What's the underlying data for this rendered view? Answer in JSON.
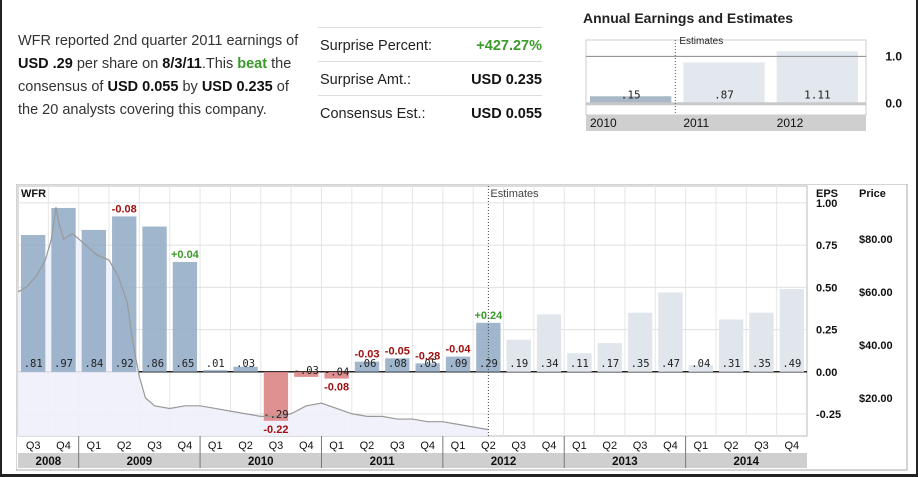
{
  "summary": {
    "p1": "WFR reported 2nd quarter 2011 earnings of",
    "eps": "USD .29",
    "p2": "per share on",
    "date": "8/3/11",
    "p3": ".This",
    "verdict": "beat",
    "p4": "the consensus of",
    "consensus": "USD 0.055",
    "p5": "by",
    "diff": "USD 0.235",
    "p6": "of the 20 analysts covering this company."
  },
  "stats": [
    {
      "label": "Surprise Percent:",
      "value": "+427.27%",
      "positive": true
    },
    {
      "label": "Surprise Amt.:",
      "value": "USD 0.235",
      "positive": false
    },
    {
      "label": "Consensus Est.:",
      "value": "USD 0.055",
      "positive": false
    }
  ],
  "chart_data": [
    {
      "type": "bar",
      "title": "Annual Earnings and Estimates",
      "categories": [
        "2010",
        "2011",
        "2012"
      ],
      "values": [
        0.15,
        0.87,
        1.11
      ],
      "value_labels": [
        ".15",
        ".87",
        "1.11"
      ],
      "estimate_start": "2011",
      "estimates_label": "Estimates",
      "ytick_labels": [
        "1.0",
        "0.0"
      ],
      "yticks": [
        1.0,
        0.0
      ],
      "ylim": [
        -0.25,
        1.35
      ],
      "colors": {
        "actual": "#a8b8c8",
        "estimate": "#e2e8ee",
        "axis_band": "#c8c8c8"
      }
    },
    {
      "type": "bar",
      "ticker": "WFR",
      "estimates_label": "Estimates",
      "eps_axis_label": "EPS",
      "price_axis_label": "Price",
      "quarters": [
        "Q3",
        "Q4",
        "Q1",
        "Q2",
        "Q3",
        "Q4",
        "Q1",
        "Q2",
        "Q3",
        "Q4",
        "Q1",
        "Q2",
        "Q3",
        "Q4",
        "Q1",
        "Q2",
        "Q3",
        "Q4",
        "Q1",
        "Q2",
        "Q3",
        "Q4",
        "Q1",
        "Q2",
        "Q3",
        "Q4"
      ],
      "years": [
        {
          "label": "2008",
          "start": 0,
          "count": 2
        },
        {
          "label": "2009",
          "start": 2,
          "count": 4
        },
        {
          "label": "2010",
          "start": 6,
          "count": 4
        },
        {
          "label": "2011",
          "start": 10,
          "count": 4
        },
        {
          "label": "2012",
          "start": 14,
          "count": 4
        },
        {
          "label": "2013",
          "start": 18,
          "count": 4
        },
        {
          "label": "2014",
          "start": 22,
          "count": 4
        }
      ],
      "eps": [
        0.81,
        0.97,
        0.84,
        0.92,
        0.86,
        0.65,
        0.01,
        0.03,
        -0.29,
        -0.03,
        -0.04,
        0.06,
        0.08,
        0.05,
        0.09,
        0.29,
        0.19,
        0.34,
        0.11,
        0.17,
        0.35,
        0.47,
        0.04,
        0.31,
        0.35,
        0.49
      ],
      "eps_labels": [
        ".81",
        ".97",
        ".84",
        ".92",
        ".86",
        ".65",
        ".01",
        ".03",
        "-.29",
        "-.03",
        "-.04",
        ".06",
        ".08",
        ".05",
        ".09",
        ".29",
        ".19",
        ".34",
        ".11",
        ".17",
        ".35",
        ".47",
        ".04",
        ".31",
        ".35",
        ".49"
      ],
      "estimate_start_index": 16,
      "surprises": [
        {
          "index": 3,
          "value": -0.08,
          "label": "-0.08"
        },
        {
          "index": 5,
          "value": 0.04,
          "label": "+0.04"
        },
        {
          "index": 8,
          "value": -0.22,
          "label": "-0.22"
        },
        {
          "index": 10,
          "value": -0.08,
          "label": "-0.08"
        },
        {
          "index": 11,
          "value": -0.03,
          "label": "-0.03"
        },
        {
          "index": 12,
          "value": -0.05,
          "label": "-0.05"
        },
        {
          "index": 13,
          "value": -0.28,
          "label": "-0.28"
        },
        {
          "index": 14,
          "value": -0.04,
          "label": "-0.04"
        },
        {
          "index": 15,
          "value": 0.24,
          "label": "+0.24"
        }
      ],
      "eps_ticks": [
        1.0,
        0.75,
        0.5,
        0.25,
        0.0,
        -0.25
      ],
      "eps_tick_labels": [
        "1.00",
        "0.75",
        "0.50",
        "0.25",
        "0.00",
        "-0.25"
      ],
      "eps_range": [
        -0.38,
        1.1
      ],
      "price_ticks": [
        80,
        60,
        40,
        20
      ],
      "price_tick_labels": [
        "$80.00",
        "$60.00",
        "$40.00",
        "$20.00"
      ],
      "price_range": [
        5.6,
        100
      ],
      "price_series": [
        {
          "q": 0.0,
          "p": 60
        },
        {
          "q": 0.3,
          "p": 62
        },
        {
          "q": 0.6,
          "p": 66
        },
        {
          "q": 0.9,
          "p": 72
        },
        {
          "q": 1.1,
          "p": 80
        },
        {
          "q": 1.25,
          "p": 92
        },
        {
          "q": 1.35,
          "p": 86
        },
        {
          "q": 1.5,
          "p": 80
        },
        {
          "q": 1.8,
          "p": 82
        },
        {
          "q": 2.2,
          "p": 78
        },
        {
          "q": 2.6,
          "p": 74
        },
        {
          "q": 3.0,
          "p": 72
        },
        {
          "q": 3.3,
          "p": 66
        },
        {
          "q": 3.6,
          "p": 56
        },
        {
          "q": 3.8,
          "p": 40
        },
        {
          "q": 4.0,
          "p": 28
        },
        {
          "q": 4.2,
          "p": 20
        },
        {
          "q": 4.5,
          "p": 17
        },
        {
          "q": 5.0,
          "p": 16
        },
        {
          "q": 5.5,
          "p": 17
        },
        {
          "q": 6.0,
          "p": 17
        },
        {
          "q": 6.5,
          "p": 16
        },
        {
          "q": 7.0,
          "p": 15
        },
        {
          "q": 7.5,
          "p": 14
        },
        {
          "q": 8.0,
          "p": 13
        },
        {
          "q": 8.5,
          "p": 13
        },
        {
          "q": 9.0,
          "p": 14
        },
        {
          "q": 9.5,
          "p": 17
        },
        {
          "q": 10.0,
          "p": 18
        },
        {
          "q": 10.5,
          "p": 16
        },
        {
          "q": 11.0,
          "p": 14
        },
        {
          "q": 11.5,
          "p": 13
        },
        {
          "q": 12.0,
          "p": 13
        },
        {
          "q": 12.5,
          "p": 12
        },
        {
          "q": 13.0,
          "p": 12
        },
        {
          "q": 13.5,
          "p": 11
        },
        {
          "q": 14.0,
          "p": 11
        },
        {
          "q": 14.5,
          "p": 10
        },
        {
          "q": 15.0,
          "p": 9
        },
        {
          "q": 15.5,
          "p": 8
        }
      ],
      "colors": {
        "actual": "#8fa9c4",
        "estimate": "#e0e6ec",
        "positive_surprise": "#3a9a2a",
        "negative_surprise": "#a01010",
        "negative_bar": "#d97c7c",
        "price_line": "#999999",
        "price_fill": "#eef0fa"
      }
    }
  ]
}
